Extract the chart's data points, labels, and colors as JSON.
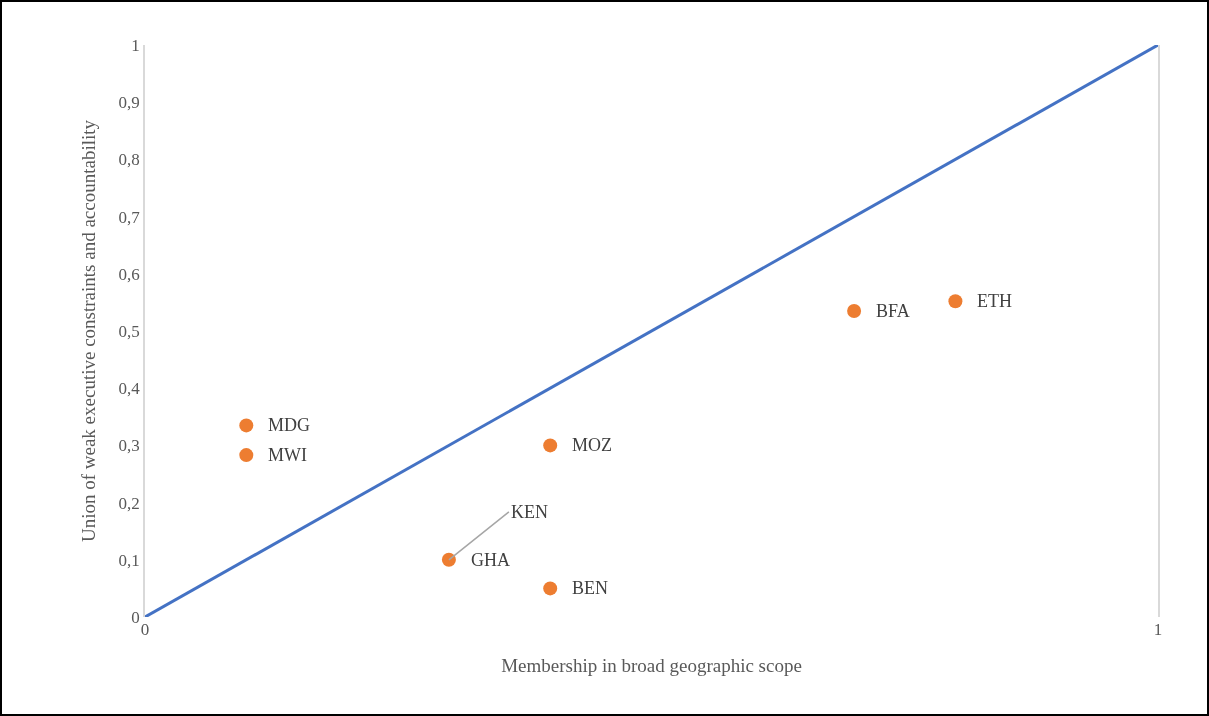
{
  "chart_data": {
    "type": "scatter",
    "xlabel": "Membership in broad geographic scope",
    "ylabel": "Union of weak executive constraints and accountability",
    "series": [
      {
        "type": "line",
        "color": "#4472c4",
        "x": [
          0,
          1
        ],
        "values": [
          0,
          1
        ],
        "marker": "none"
      },
      {
        "color": "#ed7d31",
        "x": [
          0.1,
          0.1,
          0.3,
          0.4,
          0.4,
          0.7,
          0.8
        ],
        "values": [
          0.335,
          0.283,
          0.1,
          0.3,
          0.05,
          0.535,
          0.552
        ],
        "marker": "circle"
      }
    ],
    "annotations": [
      {
        "text": "MDG",
        "x": 0.1,
        "y": 0.335
      },
      {
        "text": "MWI",
        "x": 0.1,
        "y": 0.283
      },
      {
        "text": "GHA",
        "x": 0.3,
        "y": 0.1
      },
      {
        "text": "KEN",
        "x": 0.3,
        "y": 0.1
      },
      {
        "text": "MOZ",
        "x": 0.4,
        "y": 0.3
      },
      {
        "text": "BEN",
        "x": 0.4,
        "y": 0.05
      },
      {
        "text": "BFA",
        "x": 0.7,
        "y": 0.535
      },
      {
        "text": "ETH",
        "x": 0.8,
        "y": 0.552
      }
    ],
    "xlim": [
      0,
      1
    ],
    "xticks": [
      0,
      1
    ],
    "ylim": [
      0,
      1
    ],
    "yticks": [
      0,
      {
        "value": 0.1,
        "label": "0,1"
      },
      {
        "value": 0.2,
        "label": "0,2"
      },
      {
        "value": 0.3,
        "label": "0,3"
      },
      {
        "value": 0.4,
        "label": "0,4"
      },
      {
        "value": 0.5,
        "label": "0,5"
      },
      {
        "value": 0.6,
        "label": "0,6"
      },
      {
        "value": 0.7,
        "label": "0,7"
      },
      {
        "value": 0.8,
        "label": "0,8"
      },
      {
        "value": 0.9,
        "label": "0,9"
      },
      1
    ],
    "legend": false
  }
}
